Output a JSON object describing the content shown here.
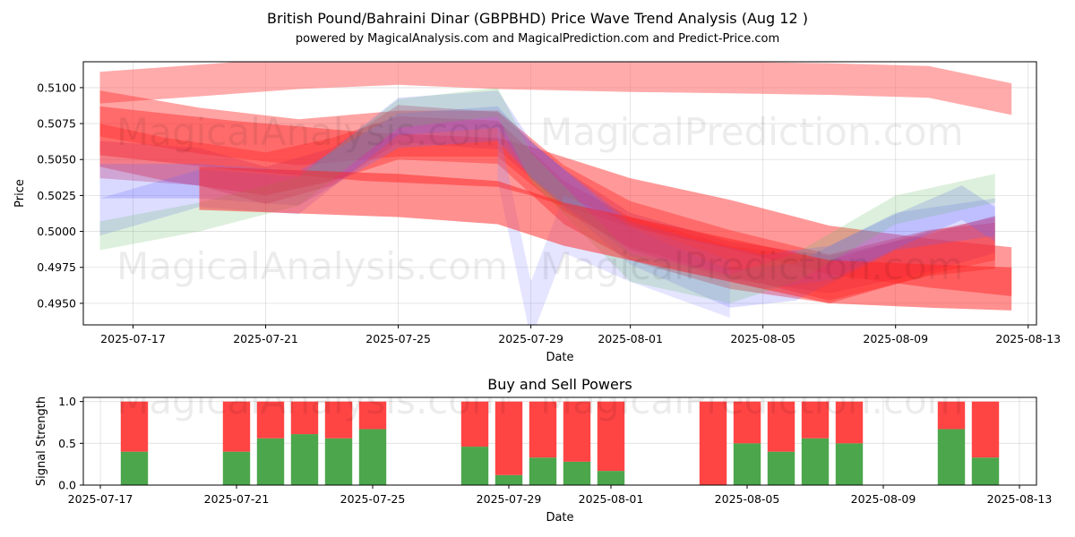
{
  "chart_data": [
    {
      "type": "area",
      "title": "British Pound/Bahraini Dinar (GBPBHD) Price Wave Trend Analysis (Aug 12 )",
      "subtitle": "powered by MagicalAnalysis.com and MagicalPrediction.com and Predict-Price.com",
      "xlabel": "Date",
      "ylabel": "Price",
      "xlim": [
        "2025-07-15T12:00",
        "2025-08-13T06:00"
      ],
      "ylim": [
        0.4935,
        0.5118
      ],
      "grid": true,
      "x_ticks": [
        "2025-07-17",
        "2025-07-21",
        "2025-07-25",
        "2025-07-29",
        "2025-08-01",
        "2025-08-05",
        "2025-08-09",
        "2025-08-13"
      ],
      "y_ticks": [
        "0.4950",
        "0.4975",
        "0.5000",
        "0.5025",
        "0.5050",
        "0.5075",
        "0.5100"
      ],
      "watermarks": [
        "MagicalAnalysis.com",
        "MagicalPrediction.com"
      ],
      "bands": [
        {
          "color": "#ff6666",
          "opacity": 0.55,
          "width": 0.0022,
          "x": [
            "2025-07-16",
            "2025-07-19",
            "2025-07-22",
            "2025-07-25",
            "2025-07-28",
            "2025-08-01",
            "2025-08-04",
            "2025-08-07",
            "2025-08-10",
            "2025-08-12T12:00"
          ],
          "y": [
            0.51,
            0.5105,
            0.511,
            0.5113,
            0.511,
            0.5108,
            0.5107,
            0.5106,
            0.5104,
            0.5092
          ]
        },
        {
          "color": "#ff3333",
          "opacity": 0.5,
          "width": 0.0034,
          "x": [
            "2025-07-16",
            "2025-07-20",
            "2025-07-24",
            "2025-07-28",
            "2025-07-29",
            "2025-08-01",
            "2025-08-04",
            "2025-08-07",
            "2025-08-10",
            "2025-08-12T12:00"
          ],
          "y": [
            0.507,
            0.506,
            0.5052,
            0.5048,
            0.5042,
            0.502,
            0.5005,
            0.4987,
            0.4978,
            0.4972
          ]
        },
        {
          "color": "#ff3333",
          "opacity": 0.45,
          "width": 0.0032,
          "x": [
            "2025-07-16",
            "2025-07-19",
            "2025-07-22",
            "2025-07-25",
            "2025-07-28",
            "2025-07-30",
            "2025-08-01",
            "2025-08-04",
            "2025-08-07",
            "2025-08-10",
            "2025-08-12"
          ],
          "y": [
            0.5082,
            0.507,
            0.5062,
            0.5068,
            0.5068,
            0.503,
            0.5005,
            0.4985,
            0.4968,
            0.4985,
            0.499
          ]
        },
        {
          "color": "#ff3333",
          "opacity": 0.45,
          "width": 0.003,
          "x": [
            "2025-07-16",
            "2025-07-18",
            "2025-07-21",
            "2025-07-23",
            "2025-07-25",
            "2025-07-28",
            "2025-07-30",
            "2025-08-01",
            "2025-08-04",
            "2025-08-07",
            "2025-08-10",
            "2025-08-12"
          ],
          "y": [
            0.506,
            0.505,
            0.504,
            0.505,
            0.5065,
            0.5062,
            0.502,
            0.4995,
            0.4975,
            0.4965,
            0.4985,
            0.4995
          ]
        },
        {
          "color": "#dd3355",
          "opacity": 0.35,
          "width": 0.0026,
          "x": [
            "2025-07-16",
            "2025-07-19",
            "2025-07-21",
            "2025-07-23",
            "2025-07-25",
            "2025-07-28",
            "2025-07-30",
            "2025-08-01",
            "2025-08-04",
            "2025-08-07",
            "2025-08-10",
            "2025-08-12"
          ],
          "y": [
            0.505,
            0.5045,
            0.5032,
            0.5045,
            0.5075,
            0.507,
            0.503,
            0.5,
            0.498,
            0.497,
            0.4985,
            0.4998
          ]
        },
        {
          "color": "#6666ff",
          "opacity": 0.25,
          "width": 0.0024,
          "x": [
            "2025-07-16",
            "2025-07-19",
            "2025-07-22",
            "2025-07-25",
            "2025-07-28",
            "2025-07-29",
            "2025-08-01",
            "2025-08-03",
            "2025-08-05",
            "2025-08-07",
            "2025-08-09",
            "2025-08-11",
            "2025-08-12"
          ],
          "y": [
            0.5035,
            0.5035,
            0.503,
            0.507,
            0.5075,
            0.505,
            0.4995,
            0.4982,
            0.4972,
            0.4978,
            0.5,
            0.502,
            0.5005
          ]
        },
        {
          "color": "#6666ff",
          "opacity": 0.22,
          "width": 0.0026,
          "x": [
            "2025-07-16",
            "2025-07-19",
            "2025-07-22",
            "2025-07-25",
            "2025-07-28",
            "2025-07-29",
            "2025-08-01",
            "2025-08-04",
            "2025-08-06",
            "2025-08-09",
            "2025-08-12"
          ],
          "y": [
            0.501,
            0.503,
            0.5025,
            0.508,
            0.5085,
            0.505,
            0.499,
            0.496,
            0.4965,
            0.5,
            0.501
          ]
        },
        {
          "color": "#8888ff",
          "opacity": 0.22,
          "width": 0.004,
          "x": [
            "2025-07-28",
            "2025-07-29",
            "2025-07-30",
            "2025-08-01",
            "2025-08-04"
          ],
          "y": [
            0.5055,
            0.4945,
            0.5005,
            0.4985,
            0.496
          ]
        },
        {
          "color": "#66bb66",
          "opacity": 0.22,
          "width": 0.002,
          "x": [
            "2025-07-16",
            "2025-07-19",
            "2025-07-22",
            "2025-07-25",
            "2025-07-28",
            "2025-07-29",
            "2025-08-01",
            "2025-08-04",
            "2025-08-06",
            "2025-08-09",
            "2025-08-12"
          ],
          "y": [
            0.4997,
            0.501,
            0.5028,
            0.5082,
            0.509,
            0.5045,
            0.4975,
            0.496,
            0.4975,
            0.5015,
            0.503
          ]
        },
        {
          "color": "#ff2222",
          "opacity": 0.5,
          "width": 0.003,
          "x": [
            "2025-07-19",
            "2025-07-25",
            "2025-07-28",
            "2025-07-30",
            "2025-08-01",
            "2025-08-04",
            "2025-08-07",
            "2025-08-10",
            "2025-08-12T12:00"
          ],
          "y": [
            0.503,
            0.5025,
            0.502,
            0.5005,
            0.4995,
            0.498,
            0.4965,
            0.4962,
            0.496
          ]
        }
      ]
    },
    {
      "type": "bar",
      "title": "Buy and Sell Powers",
      "xlabel": "Date",
      "ylabel": "Signal Strength",
      "xlim": [
        "2025-07-16T12:00",
        "2025-08-13T12:00"
      ],
      "ylim": [
        0,
        1.05
      ],
      "grid": true,
      "x_ticks": [
        "2025-07-17",
        "2025-07-21",
        "2025-07-25",
        "2025-07-29",
        "2025-08-01",
        "2025-08-05",
        "2025-08-09",
        "2025-08-13"
      ],
      "y_ticks": [
        "0.0",
        "0.5",
        "1.0"
      ],
      "colors": {
        "buy": "#4ca64c",
        "sell": "#ff4444"
      },
      "x": [
        "2025-07-18",
        "2025-07-21",
        "2025-07-22",
        "2025-07-23",
        "2025-07-24",
        "2025-07-25",
        "2025-07-28",
        "2025-07-29",
        "2025-07-30",
        "2025-07-31",
        "2025-08-01",
        "2025-08-04",
        "2025-08-05",
        "2025-08-06",
        "2025-08-07",
        "2025-08-08",
        "2025-08-11",
        "2025-08-12"
      ],
      "series": [
        {
          "name": "buy",
          "values": [
            0.4,
            0.4,
            0.56,
            0.61,
            0.56,
            0.67,
            0.46,
            0.12,
            0.33,
            0.28,
            0.17,
            0.0,
            0.5,
            0.4,
            0.56,
            0.5,
            0.67,
            0.33
          ]
        },
        {
          "name": "sell",
          "values": [
            0.6,
            0.6,
            0.44,
            0.39,
            0.44,
            0.33,
            0.54,
            0.88,
            0.67,
            0.72,
            0.83,
            1.0,
            0.5,
            0.6,
            0.44,
            0.5,
            0.33,
            0.67
          ]
        }
      ]
    }
  ]
}
